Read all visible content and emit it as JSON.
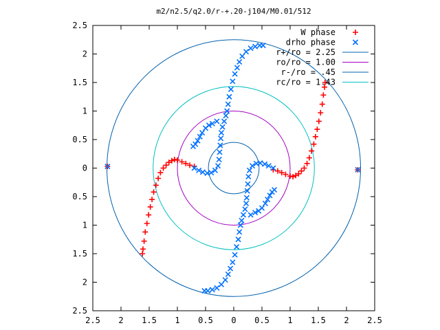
{
  "chart_data": {
    "type": "scatter",
    "title": "m2/n2.5/q2.0/r-+.20-j104/M0.01/512",
    "xlim": [
      -2.5,
      2.5
    ],
    "ylim": [
      -2.5,
      2.5
    ],
    "x_ticks": [
      -2.5,
      -2,
      -1.5,
      -1,
      -0.5,
      0,
      0.5,
      1,
      1.5,
      2,
      2.5
    ],
    "y_ticks": [
      -2.5,
      -2,
      -1.5,
      -1,
      -0.5,
      0,
      0.5,
      1,
      1.5,
      2,
      2.5
    ],
    "x_tick_labels": [
      "2.5",
      "2",
      "1.5",
      "1",
      "0.5",
      "0",
      "0.5",
      "1",
      "1.5",
      "2",
      "2.5"
    ],
    "y_tick_labels": [
      "2.5",
      "2",
      "1.5",
      "1",
      "0.5",
      "0",
      "0.5",
      "1",
      "1.5",
      "2",
      "2.5"
    ],
    "grid": false,
    "legend_position": "top-right",
    "series": [
      {
        "name": "W phase",
        "marker": "plus",
        "color": "#ff0000",
        "points": [
          [
            0.7,
            -0.03
          ],
          [
            0.78,
            -0.05
          ],
          [
            0.85,
            -0.08
          ],
          [
            0.92,
            -0.11
          ],
          [
            1.0,
            -0.14
          ],
          [
            1.05,
            -0.15
          ],
          [
            1.1,
            -0.13
          ],
          [
            1.15,
            -0.1
          ],
          [
            1.2,
            -0.05
          ],
          [
            1.25,
            0.0
          ],
          [
            1.3,
            0.08
          ],
          [
            1.34,
            0.18
          ],
          [
            1.38,
            0.3
          ],
          [
            1.42,
            0.42
          ],
          [
            1.45,
            0.55
          ],
          [
            1.48,
            0.68
          ],
          [
            1.51,
            0.82
          ],
          [
            1.54,
            0.97
          ],
          [
            1.57,
            1.12
          ],
          [
            1.59,
            1.28
          ],
          [
            1.61,
            1.42
          ],
          [
            1.62,
            1.5
          ],
          [
            -0.7,
            0.03
          ],
          [
            -0.78,
            0.05
          ],
          [
            -0.85,
            0.08
          ],
          [
            -0.92,
            0.11
          ],
          [
            -1.0,
            0.14
          ],
          [
            -1.05,
            0.15
          ],
          [
            -1.1,
            0.13
          ],
          [
            -1.15,
            0.1
          ],
          [
            -1.2,
            0.05
          ],
          [
            -1.25,
            0.0
          ],
          [
            -1.3,
            -0.08
          ],
          [
            -1.34,
            -0.18
          ],
          [
            -1.38,
            -0.3
          ],
          [
            -1.42,
            -0.42
          ],
          [
            -1.45,
            -0.55
          ],
          [
            -1.48,
            -0.68
          ],
          [
            -1.51,
            -0.82
          ],
          [
            -1.54,
            -0.97
          ],
          [
            -1.57,
            -1.12
          ],
          [
            -1.59,
            -1.28
          ],
          [
            -1.61,
            -1.42
          ],
          [
            -1.62,
            -1.5
          ],
          [
            -2.24,
            0.03
          ],
          [
            2.2,
            -0.03
          ]
        ]
      },
      {
        "name": "drho phase",
        "marker": "cross",
        "color": "#0070ff",
        "points": [
          [
            -0.7,
            0.0
          ],
          [
            -0.62,
            -0.04
          ],
          [
            -0.55,
            -0.07
          ],
          [
            -0.47,
            -0.09
          ],
          [
            -0.4,
            -0.08
          ],
          [
            -0.33,
            -0.04
          ],
          [
            -0.28,
            0.04
          ],
          [
            -0.26,
            0.15
          ],
          [
            -0.25,
            0.28
          ],
          [
            -0.24,
            0.4
          ],
          [
            -0.23,
            0.52
          ],
          [
            -0.22,
            0.62
          ],
          [
            -0.2,
            0.72
          ],
          [
            -0.17,
            0.82
          ],
          [
            -0.14,
            0.92
          ],
          [
            -0.12,
            1.0
          ],
          [
            -0.1,
            1.12
          ],
          [
            -0.08,
            1.25
          ],
          [
            -0.05,
            1.38
          ],
          [
            -0.02,
            1.52
          ],
          [
            0.02,
            1.65
          ],
          [
            0.06,
            1.76
          ],
          [
            0.1,
            1.86
          ],
          [
            0.15,
            1.96
          ],
          [
            0.22,
            2.04
          ],
          [
            0.3,
            2.1
          ],
          [
            0.38,
            2.13
          ],
          [
            0.46,
            2.15
          ],
          [
            0.52,
            2.15
          ],
          [
            -0.3,
            0.82
          ],
          [
            -0.38,
            0.78
          ],
          [
            -0.44,
            0.75
          ],
          [
            -0.5,
            0.7
          ],
          [
            -0.56,
            0.62
          ],
          [
            -0.6,
            0.55
          ],
          [
            -0.64,
            0.48
          ],
          [
            -0.68,
            0.42
          ],
          [
            -0.72,
            0.38
          ],
          [
            0.7,
            0.0
          ],
          [
            0.62,
            0.04
          ],
          [
            0.55,
            0.07
          ],
          [
            0.47,
            0.09
          ],
          [
            0.4,
            0.08
          ],
          [
            0.33,
            0.04
          ],
          [
            0.28,
            -0.04
          ],
          [
            0.26,
            -0.15
          ],
          [
            0.25,
            -0.28
          ],
          [
            0.24,
            -0.4
          ],
          [
            0.23,
            -0.52
          ],
          [
            0.22,
            -0.62
          ],
          [
            0.2,
            -0.72
          ],
          [
            0.17,
            -0.82
          ],
          [
            0.14,
            -0.92
          ],
          [
            0.12,
            -1.0
          ],
          [
            0.1,
            -1.12
          ],
          [
            0.08,
            -1.25
          ],
          [
            0.05,
            -1.38
          ],
          [
            0.02,
            -1.52
          ],
          [
            -0.02,
            -1.65
          ],
          [
            -0.06,
            -1.76
          ],
          [
            -0.1,
            -1.86
          ],
          [
            -0.15,
            -1.96
          ],
          [
            -0.22,
            -2.04
          ],
          [
            -0.3,
            -2.1
          ],
          [
            -0.38,
            -2.13
          ],
          [
            -0.46,
            -2.15
          ],
          [
            -0.52,
            -2.15
          ],
          [
            0.3,
            -0.82
          ],
          [
            0.38,
            -0.78
          ],
          [
            0.44,
            -0.75
          ],
          [
            0.5,
            -0.7
          ],
          [
            0.56,
            -0.62
          ],
          [
            0.6,
            -0.55
          ],
          [
            0.64,
            -0.48
          ],
          [
            0.68,
            -0.42
          ],
          [
            0.72,
            -0.38
          ],
          [
            -2.24,
            0.03
          ],
          [
            2.2,
            -0.03
          ]
        ]
      },
      {
        "name": "r+/ro = 2.25",
        "type": "circle",
        "radius": 2.25,
        "color": "#0060ad"
      },
      {
        "name": "ro/ro = 1.00",
        "type": "circle",
        "radius": 1.0,
        "color": "#a000c0"
      },
      {
        "name": "r-/ro = .45",
        "type": "circle",
        "radius": 0.45,
        "color": "#0060ad"
      },
      {
        "name": "rc/ro = 1.43",
        "type": "circle",
        "radius": 1.43,
        "color": "#00c0c0"
      }
    ],
    "legend": [
      {
        "label": "W phase",
        "sample": "plus",
        "color": "#ff0000"
      },
      {
        "label": "drho phase",
        "sample": "cross",
        "color": "#0070ff"
      },
      {
        "label": "r+/ro = 2.25",
        "sample": "line",
        "color": "#0060ad"
      },
      {
        "label": "ro/ro = 1.00",
        "sample": "line",
        "color": "#a000c0"
      },
      {
        "label": "r-/ro = .45",
        "sample": "line",
        "color": "#0060ad"
      },
      {
        "label": "rc/ro = 1.43",
        "sample": "line",
        "color": "#00c0c0"
      }
    ]
  }
}
